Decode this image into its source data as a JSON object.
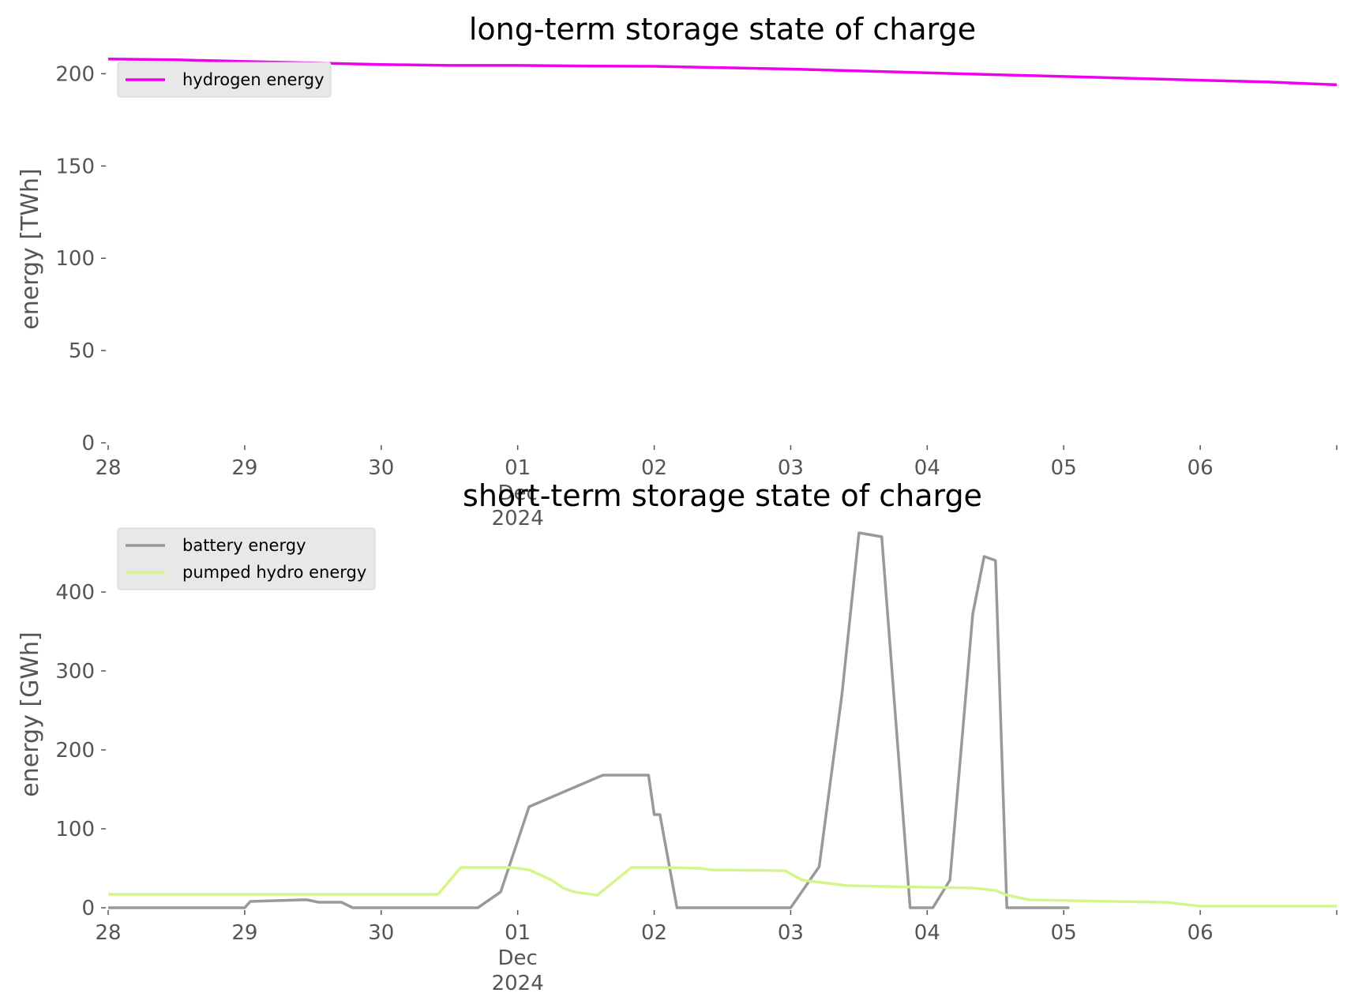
{
  "chart_data": [
    {
      "type": "line",
      "title": "long-term storage state of charge",
      "xlabel": "",
      "ylabel": "energy [TWh]",
      "xlim": [
        "2024-11-28",
        "2024-12-07"
      ],
      "ylim": [
        0,
        210
      ],
      "y_ticks": [
        0,
        50,
        100,
        150,
        200
      ],
      "x_ticks": [
        {
          "date": "2024-11-28",
          "label": "28"
        },
        {
          "date": "2024-11-29",
          "label": "29"
        },
        {
          "date": "2024-11-30",
          "label": "30"
        },
        {
          "date": "2024-12-01",
          "label": "01",
          "sub": [
            "Dec",
            "2024"
          ]
        },
        {
          "date": "2024-12-02",
          "label": "02"
        },
        {
          "date": "2024-12-03",
          "label": "03"
        },
        {
          "date": "2024-12-04",
          "label": "04"
        },
        {
          "date": "2024-12-05",
          "label": "05"
        },
        {
          "date": "2024-12-06",
          "label": "06"
        }
      ],
      "grid": false,
      "legend_position": "top-left",
      "series": [
        {
          "name": "hydrogen energy",
          "color": "#ee00ee",
          "x": [
            "2024-11-28 00:00",
            "2024-11-28 12:00",
            "2024-11-29 00:00",
            "2024-11-29 12:00",
            "2024-11-30 00:00",
            "2024-11-30 12:00",
            "2024-12-01 00:00",
            "2024-12-01 12:00",
            "2024-12-02 00:00",
            "2024-12-02 12:00",
            "2024-12-03 00:00",
            "2024-12-03 12:00",
            "2024-12-04 00:00",
            "2024-12-04 12:00",
            "2024-12-05 00:00",
            "2024-12-05 12:00",
            "2024-12-06 00:00",
            "2024-12-06 12:00",
            "2024-12-07 00:00"
          ],
          "y": [
            208.0,
            207.5,
            206.6,
            205.8,
            205.0,
            204.5,
            204.5,
            204.2,
            204.0,
            203.3,
            202.5,
            201.5,
            200.5,
            199.5,
            198.5,
            197.5,
            196.5,
            195.5,
            194.0
          ]
        }
      ]
    },
    {
      "type": "line",
      "title": "short-term storage state of charge",
      "xlabel": "",
      "ylabel": "energy [GWh]",
      "xlim": [
        "2024-11-28",
        "2024-12-07"
      ],
      "ylim": [
        0,
        490
      ],
      "y_ticks": [
        0,
        100,
        200,
        300,
        400
      ],
      "x_ticks": [
        {
          "date": "2024-11-28",
          "label": "28"
        },
        {
          "date": "2024-11-29",
          "label": "29"
        },
        {
          "date": "2024-11-30",
          "label": "30"
        },
        {
          "date": "2024-12-01",
          "label": "01",
          "sub": [
            "Dec",
            "2024"
          ]
        },
        {
          "date": "2024-12-02",
          "label": "02"
        },
        {
          "date": "2024-12-03",
          "label": "03"
        },
        {
          "date": "2024-12-04",
          "label": "04"
        },
        {
          "date": "2024-12-05",
          "label": "05"
        },
        {
          "date": "2024-12-06",
          "label": "06"
        }
      ],
      "grid": false,
      "legend_position": "top-left",
      "series": [
        {
          "name": "battery energy",
          "color": "#999999",
          "x": [
            "2024-11-28 00:00",
            "2024-11-28 12:00",
            "2024-11-28 14:00",
            "2024-11-28 18:00",
            "2024-11-28 21:00",
            "2024-11-29 00:00",
            "2024-11-29 01:00",
            "2024-11-29 10:00",
            "2024-11-29 11:00",
            "2024-11-29 13:00",
            "2024-11-29 15:00",
            "2024-11-29 17:00",
            "2024-11-29 19:00",
            "2024-11-29 23:00",
            "2024-11-30 00:00",
            "2024-11-30 01:00",
            "2024-11-30 03:00",
            "2024-11-30 17:00",
            "2024-11-30 21:00",
            "2024-12-01 02:00",
            "2024-12-01 14:00",
            "2024-12-01 15:00",
            "2024-12-01 21:00",
            "2024-12-01 23:00",
            "2024-12-02 00:00",
            "2024-12-02 01:00",
            "2024-12-02 04:00",
            "2024-12-02 09:00",
            "2024-12-02 15:00",
            "2024-12-02 19:00",
            "2024-12-02 23:00",
            "2024-12-03 00:00",
            "2024-12-03 05:00",
            "2024-12-03 09:00",
            "2024-12-03 12:00",
            "2024-12-03 16:00",
            "2024-12-03 21:00",
            "2024-12-03 22:00",
            "2024-12-04 00:00",
            "2024-12-04 01:00",
            "2024-12-04 04:00",
            "2024-12-04 08:00",
            "2024-12-04 10:00",
            "2024-12-04 12:00",
            "2024-12-04 14:00",
            "2024-12-04 17:00",
            "2024-12-04 19:00",
            "2024-12-04 21:00",
            "2024-12-04 23:00",
            "2024-12-05 00:00",
            "2024-12-05 01:00"
          ],
          "y": [
            0,
            0,
            0,
            0,
            0,
            0,
            8,
            10,
            10,
            7,
            7,
            7,
            0,
            0,
            0,
            0,
            0,
            0,
            20,
            128,
            165,
            168,
            168,
            168,
            118,
            118,
            0,
            0,
            0,
            0,
            0,
            0,
            52,
            270,
            475,
            470,
            0,
            0,
            0,
            0,
            35,
            372,
            445,
            440,
            0,
            0,
            0,
            0,
            0,
            0,
            0
          ],
          "note_x": "sampled approx hourly"
        },
        {
          "name": "pumped hydro energy",
          "color": "#d4f58c",
          "x": [
            "2024-11-28 00:00",
            "2024-11-30 10:00",
            "2024-11-30 14:00",
            "2024-11-30 23:00",
            "2024-12-01 02:00",
            "2024-12-01 06:00",
            "2024-12-01 08:00",
            "2024-12-01 10:00",
            "2024-12-01 14:00",
            "2024-12-01 20:00",
            "2024-12-02 02:00",
            "2024-12-02 08:00",
            "2024-12-02 10:00",
            "2024-12-02 23:00",
            "2024-12-03 02:00",
            "2024-12-03 10:00",
            "2024-12-03 16:00",
            "2024-12-04 08:00",
            "2024-12-04 12:00",
            "2024-12-04 14:00",
            "2024-12-04 18:00",
            "2024-12-05 09:00",
            "2024-12-05 18:00",
            "2024-12-06 00:00",
            "2024-12-07 00:00"
          ],
          "y": [
            17,
            17,
            51,
            51,
            48,
            35,
            25,
            20,
            16,
            51,
            51,
            50,
            48,
            47,
            35,
            28,
            27,
            25,
            22,
            16,
            10,
            8,
            7,
            2,
            2
          ]
        }
      ]
    }
  ]
}
